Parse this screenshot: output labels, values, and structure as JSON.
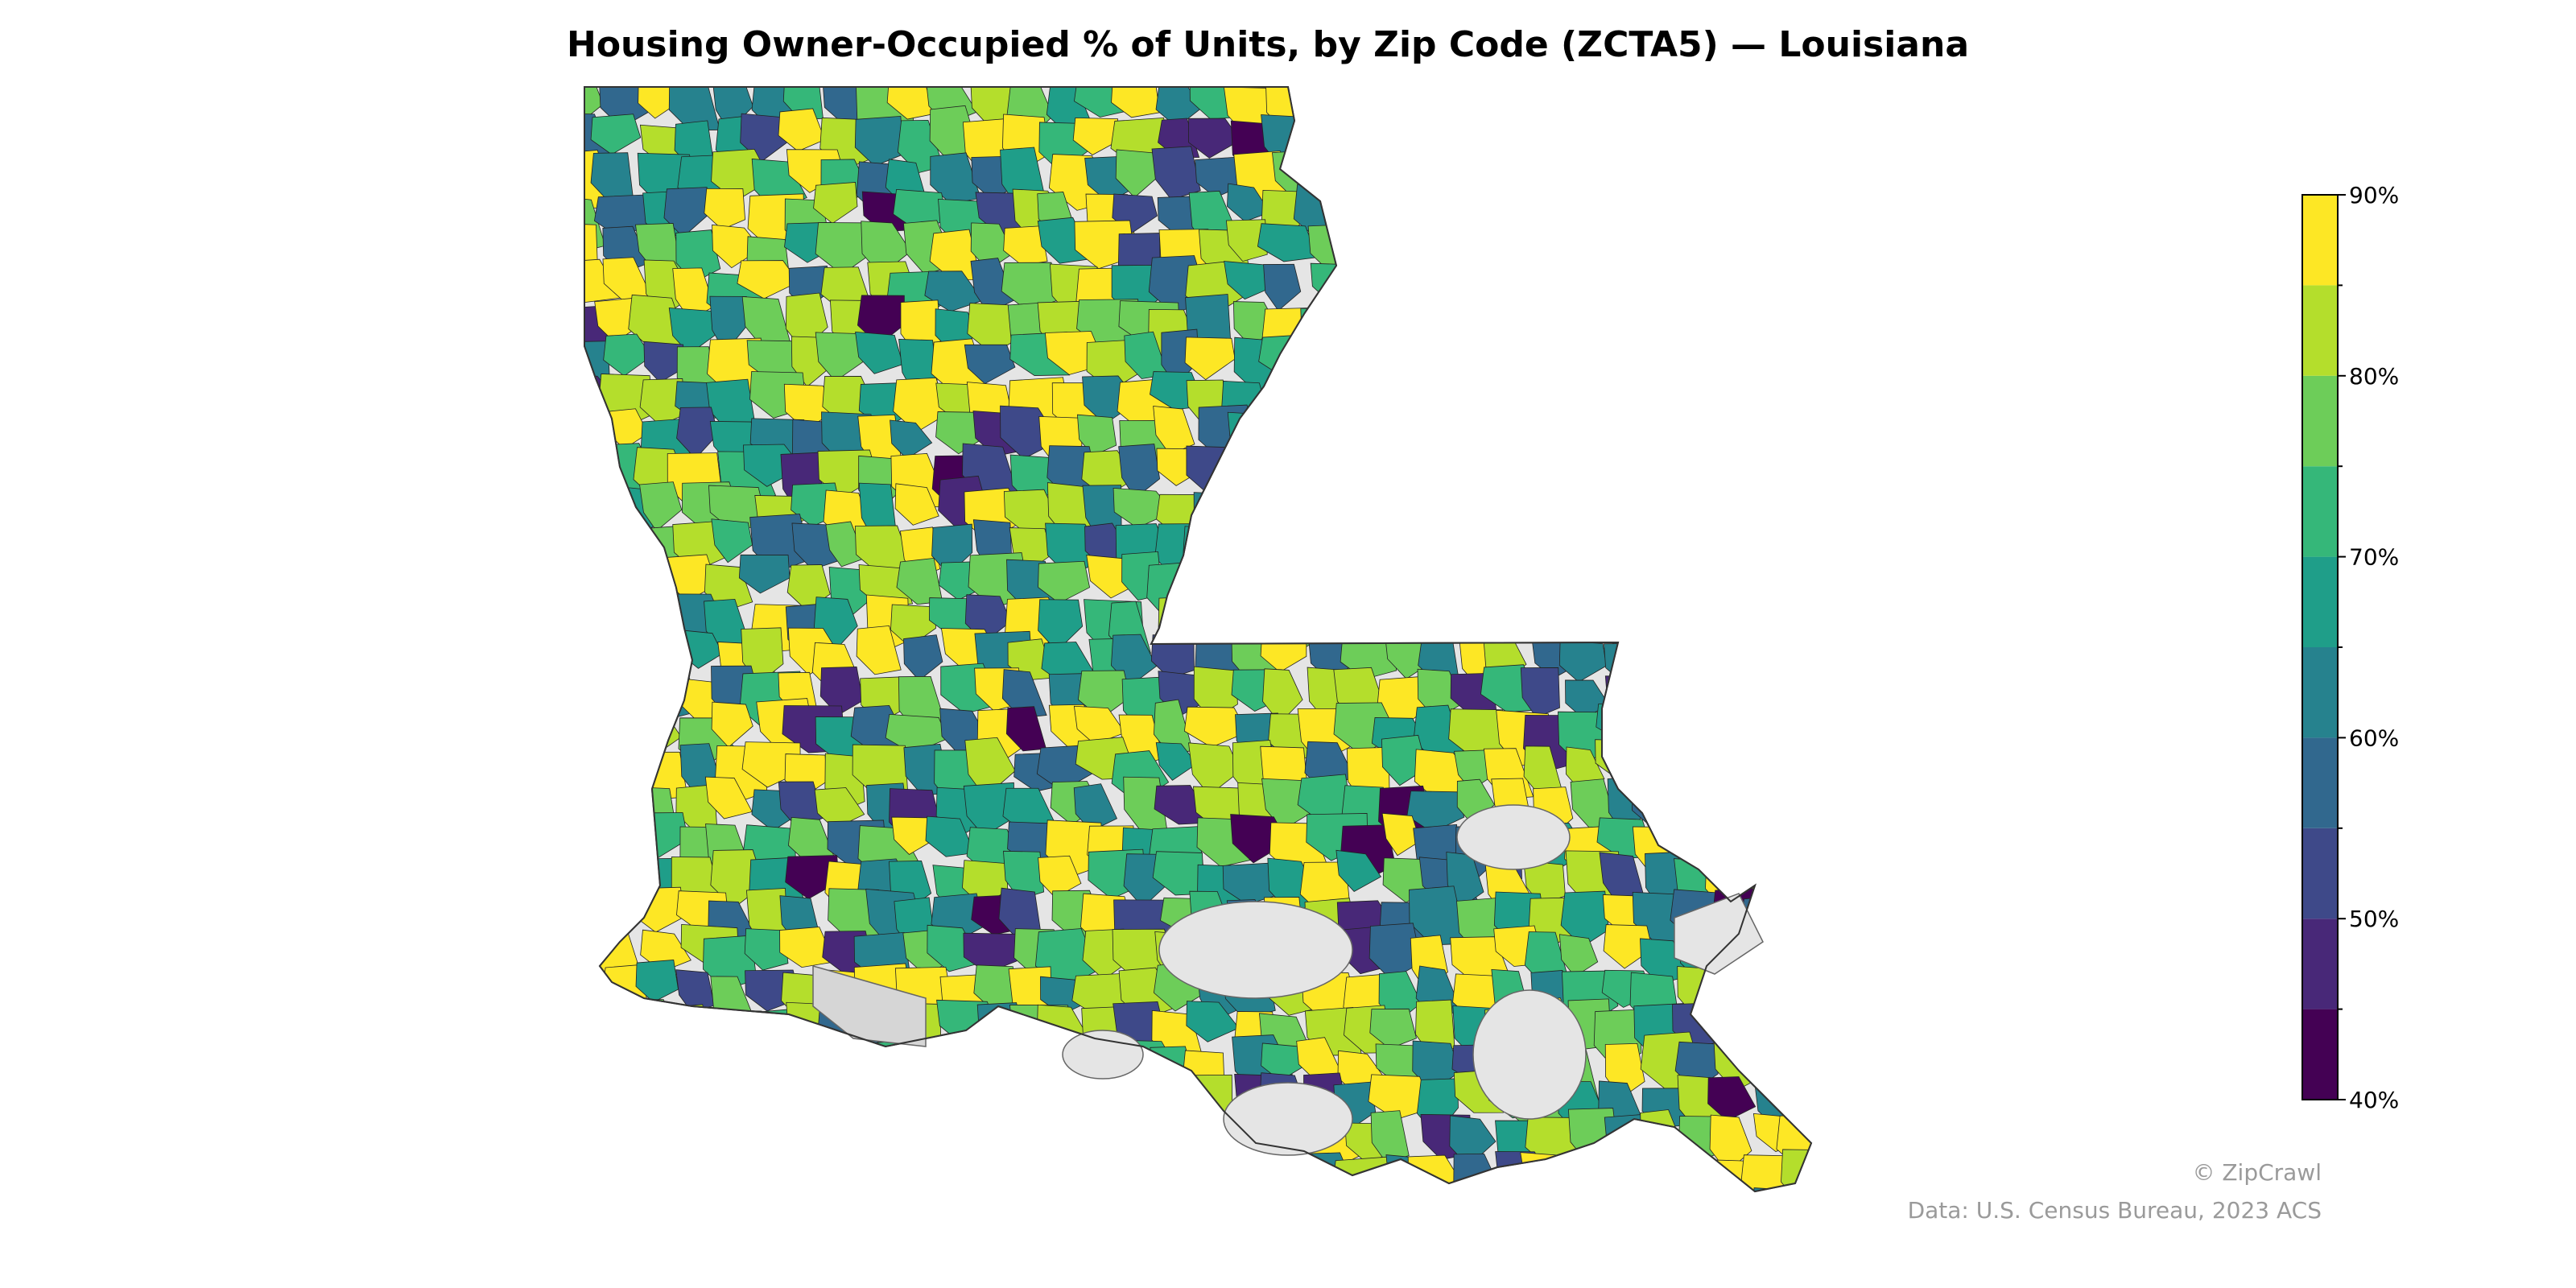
{
  "title": "Housing Owner-Occupied % of Units, by Zip Code (ZCTA5) — Louisiana",
  "colorbar": {
    "min": 40,
    "max": 90,
    "step": 5,
    "colors": [
      "#440154",
      "#482878",
      "#3e4989",
      "#31688e",
      "#26828e",
      "#1f9e89",
      "#35b779",
      "#6dcd59",
      "#b4de2c",
      "#fde725"
    ],
    "tick_labels": [
      "40%",
      "50%",
      "60%",
      "70%",
      "80%",
      "90%"
    ]
  },
  "map": {
    "state": "Louisiana",
    "no_data_color": "#e5e5e5",
    "border_color": "#222222"
  },
  "credits": {
    "brand": "© ZipCrawl",
    "source": "Data: U.S. Census Bureau, 2023 ACS"
  }
}
